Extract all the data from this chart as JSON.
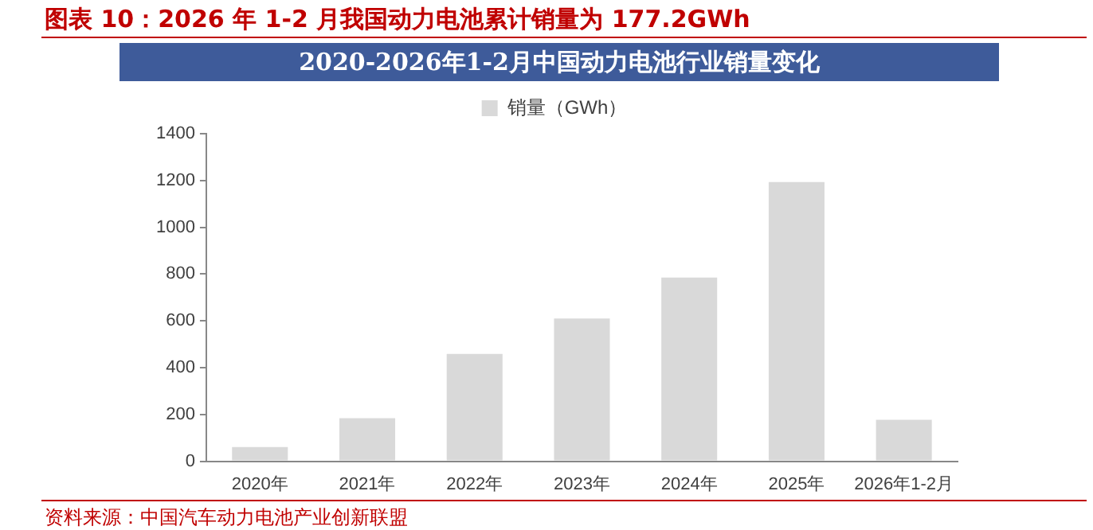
{
  "chart_data": {
    "type": "bar",
    "title": "图表 10：2026 年 1-2 月我国动力电池累计销量为 177.2GWh",
    "subtitle": "2020-2026年1-2月中国动力电池行业销量变化",
    "categories": [
      "2020年",
      "2021年",
      "2022年",
      "2023年",
      "2024年",
      "2025年",
      "2026年1-2月"
    ],
    "series": [
      {
        "name": "销量（GWh）",
        "color": "#d9d9d9",
        "values": [
          61,
          184,
          459,
          610,
          785,
          1193,
          177
        ]
      }
    ],
    "ylim": [
      0,
      1400
    ],
    "yticks": [
      0,
      200,
      400,
      600,
      800,
      1000,
      1200,
      1400
    ],
    "grid": false,
    "legend": "top",
    "annotations": [
      "资料来源：中国汽车动力电池产业创新联盟"
    ]
  }
}
